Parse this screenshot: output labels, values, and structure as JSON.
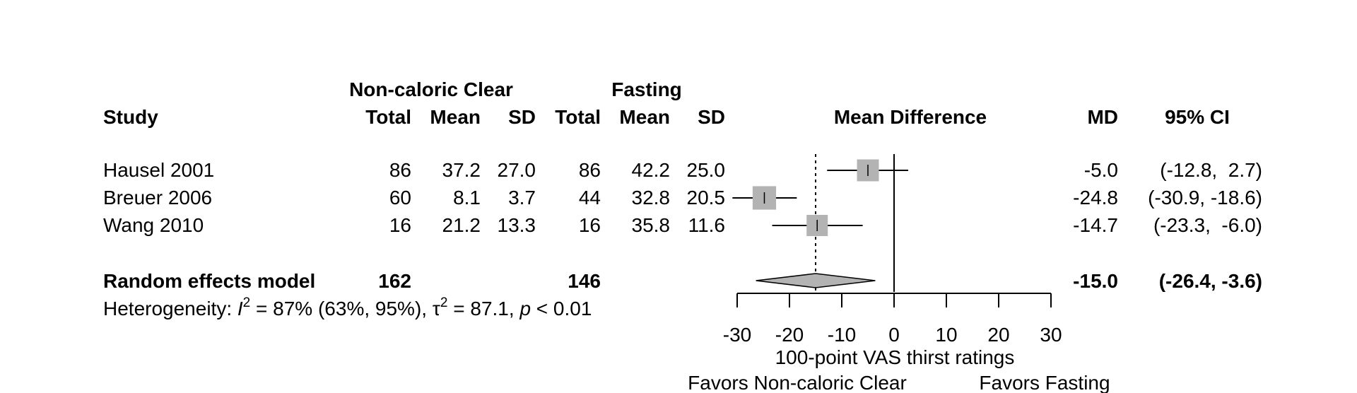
{
  "chart_data": {
    "type": "forest",
    "group_headers": {
      "experimental": "Non-caloric Clear",
      "control": "Fasting"
    },
    "columns": {
      "study": "Study",
      "exp_total": "Total",
      "exp_mean": "Mean",
      "exp_sd": "SD",
      "ctl_total": "Total",
      "ctl_mean": "Mean",
      "ctl_sd": "SD",
      "plot": "Mean Difference",
      "md": "MD",
      "ci": "95% CI"
    },
    "studies": [
      {
        "name": "Hausel 2001",
        "exp_total": "86",
        "exp_mean": "37.2",
        "exp_sd": "27.0",
        "ctl_total": "86",
        "ctl_mean": "42.2",
        "ctl_sd": "25.0",
        "md": -5.0,
        "lower": -12.8,
        "upper": 2.7,
        "weight": 0.78,
        "md_text": "-5.0",
        "ci_text": "(-12.8,  2.7)"
      },
      {
        "name": "Breuer 2006",
        "exp_total": "60",
        "exp_mean": "8.1",
        "exp_sd": "3.7",
        "ctl_total": "44",
        "ctl_mean": "32.8",
        "ctl_sd": "20.5",
        "md": -24.8,
        "lower": -30.9,
        "upper": -18.6,
        "weight": 0.85,
        "md_text": "-24.8",
        "ci_text": "(-30.9, -18.6)"
      },
      {
        "name": "Wang 2010",
        "exp_total": "16",
        "exp_mean": "21.2",
        "exp_sd": "13.3",
        "ctl_total": "16",
        "ctl_mean": "35.8",
        "ctl_sd": "11.6",
        "md": -14.7,
        "lower": -23.3,
        "upper": -6.0,
        "weight": 0.75,
        "md_text": "-14.7",
        "ci_text": "(-23.3,  -6.0)"
      }
    ],
    "pooled": {
      "label": "Random effects model",
      "exp_total": "162",
      "ctl_total": "146",
      "md": -15.0,
      "lower": -26.4,
      "upper": -3.6,
      "md_text": "-15.0",
      "ci_text": "(-26.4,  -3.6)"
    },
    "heterogeneity": {
      "prefix": "Heterogeneity: ",
      "i2_symbol": "I",
      "i2_value": " = 87% (63%, 95%), ",
      "tau2_symbol": "τ",
      "tau2_value": " = 87.1, ",
      "p_symbol": "p",
      "p_value": " < 0.01",
      "sup": "2"
    },
    "x_axis": {
      "min": -30,
      "max": 30,
      "ticks": [
        -30,
        -20,
        -10,
        0,
        10,
        20,
        30
      ],
      "label": "100-point VAS thirst ratings"
    },
    "favors": {
      "left": "Favors Non-caloric Clear",
      "right": "Favors Fasting"
    }
  }
}
